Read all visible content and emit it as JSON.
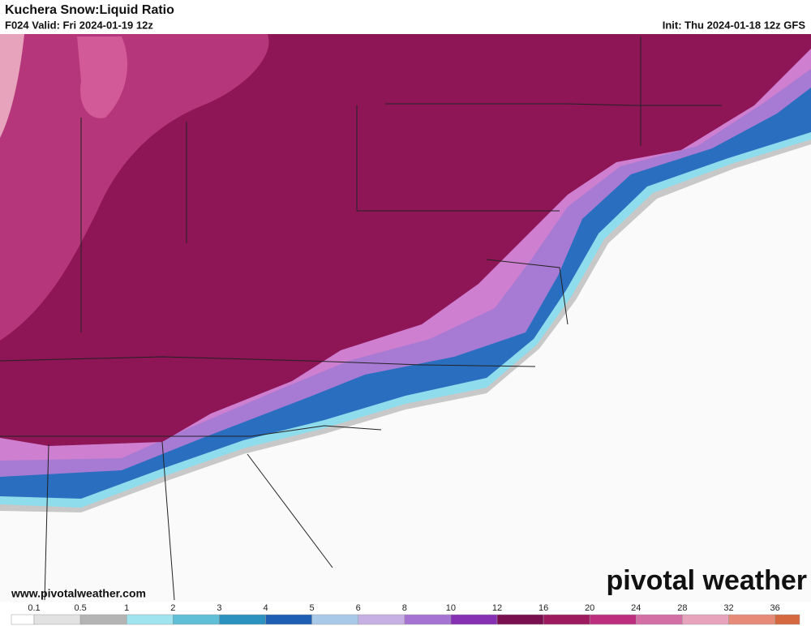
{
  "header": {
    "title": "Kuchera Snow:Liquid Ratio",
    "valid": "F024 Valid: Fri 2024-01-19 12z",
    "init": "Init: Thu 2024-01-18 12z GFS"
  },
  "footer": {
    "website": "www.pivotalweather.com",
    "logo": "pivotal weather"
  },
  "colorbar": {
    "ticks": [
      0.1,
      0.5,
      1,
      2,
      3,
      4,
      5,
      6,
      8,
      10,
      12,
      16,
      20,
      24,
      28,
      32,
      36
    ],
    "colors": [
      "#ffffff",
      "#e2e2e2",
      "#b4b4b4",
      "#9fe4ef",
      "#5ebfd6",
      "#2b92bf",
      "#1f5fb3",
      "#a9c9e9",
      "#c7b0e3",
      "#a574d2",
      "#8631b3",
      "#7a0f4f",
      "#9e1a5e",
      "#bd2f7e",
      "#d46fa6",
      "#e6a3bb",
      "#e88a78",
      "#d5683f"
    ]
  }
}
